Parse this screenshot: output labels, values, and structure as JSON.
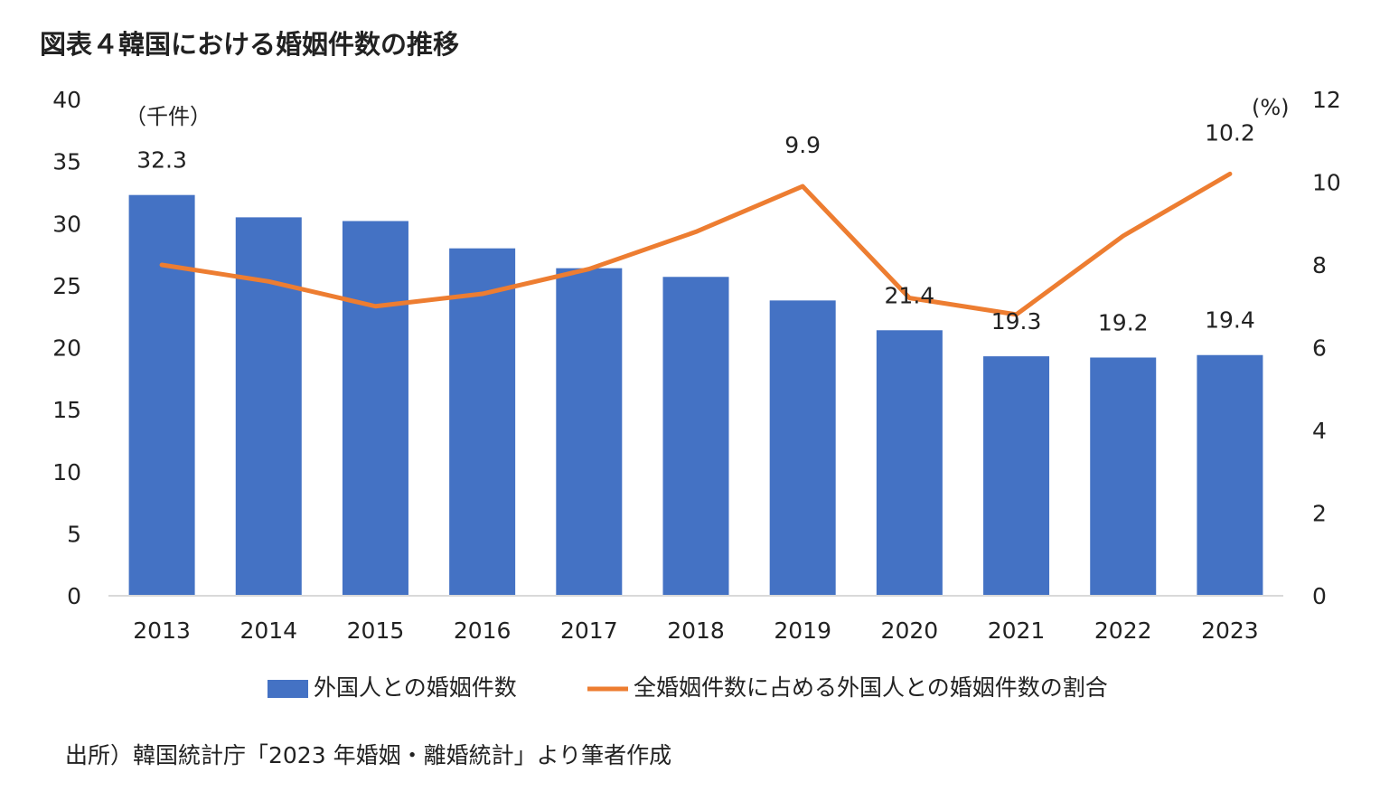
{
  "title": "図表４韓国における婚姻件数の推移",
  "source": "出所）韓国統計庁「2023 年婚姻・離婚統計」より筆者作成",
  "chart_data": {
    "type": "bar",
    "categories": [
      "2013",
      "2014",
      "2015",
      "2016",
      "2017",
      "2018",
      "2019",
      "2020",
      "2021",
      "2022",
      "2023"
    ],
    "series": [
      {
        "name": "外国人との婚姻件数",
        "type": "bar",
        "axis": "left",
        "color": "#4472C4",
        "values": [
          32.3,
          30.5,
          30.2,
          28.0,
          26.4,
          25.7,
          23.8,
          21.4,
          19.3,
          19.2,
          19.4
        ],
        "labels": {
          "0": "32.3",
          "7": "21.4",
          "8": "19.3",
          "9": "19.2",
          "10": "19.4"
        }
      },
      {
        "name": "全婚姻件数に占める外国人との婚姻件数の割合",
        "type": "line",
        "axis": "right",
        "color": "#ED7D31",
        "values": [
          8.0,
          7.6,
          7.0,
          7.3,
          7.9,
          8.8,
          9.9,
          7.2,
          6.8,
          8.7,
          10.2
        ],
        "labels": {
          "6": "9.9",
          "10": "10.2"
        }
      }
    ],
    "y_left": {
      "unit": "（千件）",
      "range": [
        0,
        40
      ],
      "ticks": [
        "0",
        "5",
        "10",
        "15",
        "20",
        "25",
        "30",
        "35",
        "40"
      ]
    },
    "y_right": {
      "unit": "(%)",
      "range": [
        0,
        12
      ],
      "ticks": [
        "0",
        "2",
        "4",
        "6",
        "8",
        "10",
        "12"
      ]
    },
    "grid": false,
    "legend": "bottom"
  }
}
